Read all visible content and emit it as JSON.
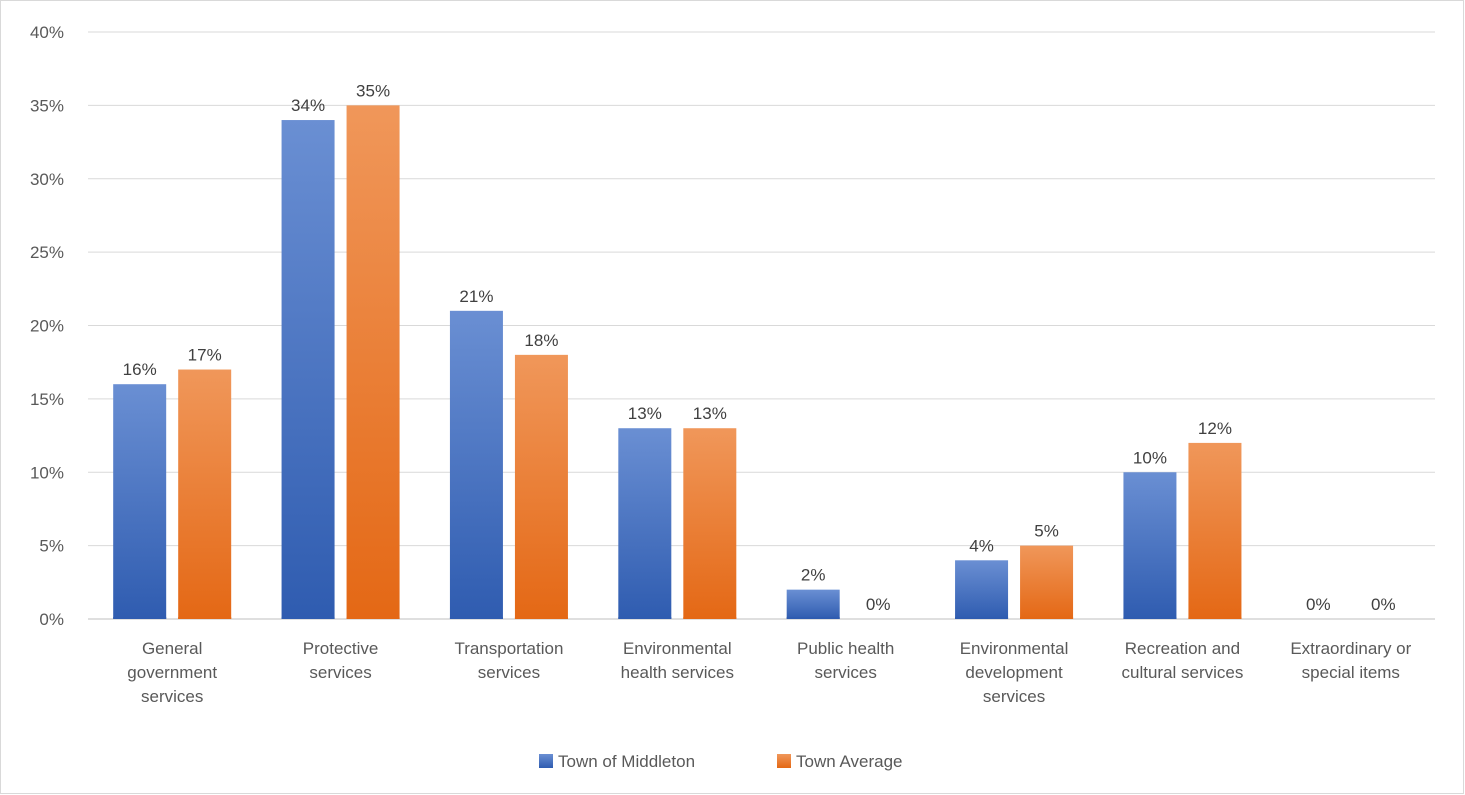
{
  "chart_data": {
    "type": "bar",
    "categories": [
      [
        "General",
        "government",
        "services"
      ],
      [
        "Protective",
        "services"
      ],
      [
        "Transportation",
        "services"
      ],
      [
        "Environmental",
        "health services"
      ],
      [
        "Public health",
        "services"
      ],
      [
        "Environmental",
        "development",
        "services"
      ],
      [
        "Recreation and",
        "cultural services"
      ],
      [
        "Extraordinary or",
        "special items"
      ]
    ],
    "series": [
      {
        "name": "Town of Middleton",
        "values": [
          16,
          34,
          21,
          13,
          2,
          4,
          10,
          0
        ],
        "labels": [
          "16%",
          "34%",
          "21%",
          "13%",
          "2%",
          "4%",
          "10%",
          "0%"
        ]
      },
      {
        "name": "Town Average",
        "values": [
          17,
          35,
          18,
          13,
          0,
          5,
          12,
          0
        ],
        "labels": [
          "17%",
          "35%",
          "18%",
          "13%",
          "0%",
          "5%",
          "12%",
          "0%"
        ]
      }
    ],
    "ylim": [
      0,
      40
    ],
    "yticks": [
      0,
      5,
      10,
      15,
      20,
      25,
      30,
      35,
      40
    ],
    "ytick_labels": [
      "0%",
      "5%",
      "10%",
      "15%",
      "20%",
      "25%",
      "30%",
      "35%",
      "40%"
    ],
    "grid": true,
    "legend_position": "bottom",
    "colors": {
      "series": [
        "#4472c4",
        "#ed7d31"
      ],
      "series_light": [
        "#6a8fd3",
        "#f0975a"
      ],
      "series_dark": [
        "#2f5cb0",
        "#e46815"
      ],
      "grid": "#d9d9d9",
      "axis": "#bfbfbf"
    }
  }
}
